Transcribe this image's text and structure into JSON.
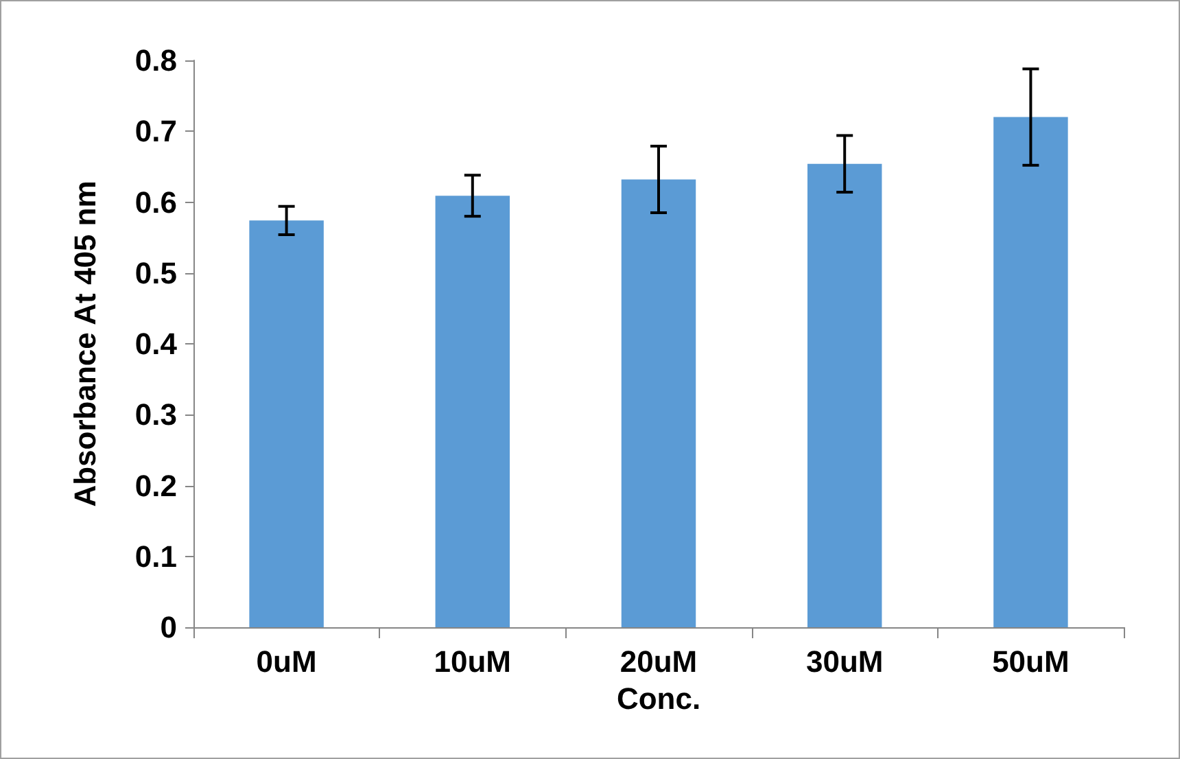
{
  "chart_data": {
    "type": "bar",
    "xlabel": "Conc.",
    "ylabel": "Absorbance At 405 nm",
    "categories": [
      "0uM",
      "10uM",
      "20uM",
      "30uM",
      "50uM"
    ],
    "values": [
      0.574,
      0.609,
      0.632,
      0.654,
      0.72
    ],
    "errors": [
      0.02,
      0.029,
      0.047,
      0.04,
      0.068
    ],
    "color": "#5b9bd5",
    "ylim": [
      0,
      0.8
    ],
    "yticks": [
      0,
      0.1,
      0.2,
      0.3,
      0.4,
      0.5,
      0.6,
      0.7,
      0.8
    ],
    "grid": false
  }
}
